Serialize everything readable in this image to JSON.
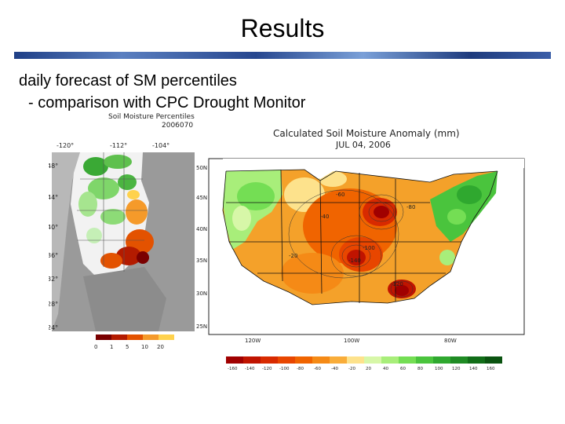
{
  "slide": {
    "title": "Results",
    "bullet1": "daily forecast of SM percentiles",
    "bullet2": "- comparison with CPC Drought Monitor"
  },
  "left_map": {
    "title_line1": "Soil Moisture Percentiles",
    "title_line2": "2006070",
    "lon_labels": [
      "-120°",
      "-112°",
      "-104°"
    ],
    "lat_labels": [
      "48°",
      "44°",
      "40°",
      "36°",
      "32°",
      "28°",
      "24°"
    ],
    "legend_labels": [
      "0",
      "1",
      "5",
      "10",
      "20"
    ],
    "legend_colors": [
      "#7a0000",
      "#b31b00",
      "#e35200",
      "#f59a2a",
      "#ffd24d"
    ]
  },
  "right_map": {
    "title_line1": "Calculated Soil Moisture Anomaly (mm)",
    "title_line2": "JUL 04, 2006",
    "lat_labels": [
      "50N",
      "45N",
      "40N",
      "35N",
      "30N",
      "25N"
    ],
    "lon_labels": [
      "120W",
      "100W",
      "80W"
    ],
    "contour_labels": [
      "-60",
      "-40",
      "-80",
      "-100",
      "-120",
      "-140",
      "-20"
    ],
    "legend_labels": [
      "-160",
      "-140",
      "-120",
      "-100",
      "-80",
      "-60",
      "-40",
      "-20",
      "20",
      "40",
      "60",
      "80",
      "100",
      "120",
      "140",
      "160"
    ],
    "legend_colors": [
      "#a00000",
      "#c01400",
      "#d82a00",
      "#e84600",
      "#f06400",
      "#f58a16",
      "#f9ad3a",
      "#fde28c",
      "#d7f7a8",
      "#a8ee7a",
      "#74de54",
      "#4ac43d",
      "#2fa82f",
      "#1f8b24",
      "#116d18",
      "#0a5310"
    ]
  }
}
